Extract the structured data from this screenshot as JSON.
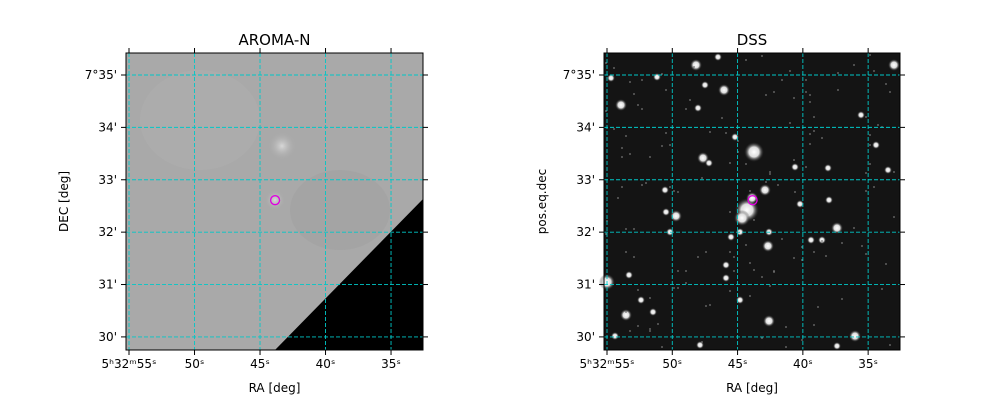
{
  "chart_data": [
    {
      "type": "image",
      "title": "AROMA-N",
      "xlabel": "RA [deg]",
      "ylabel": "DEC [deg]",
      "xlim": [
        55.23,
        32.56
      ],
      "ylim": [
        29.75,
        35.42
      ],
      "xticks": [
        {
          "value": 55,
          "label": "5ʰ32ᵐ55ˢ"
        },
        {
          "value": 50,
          "label": "50ˢ"
        },
        {
          "value": 45,
          "label": "45ˢ"
        },
        {
          "value": 40,
          "label": "40ˢ"
        },
        {
          "value": 35,
          "label": "35ˢ"
        }
      ],
      "yticks": [
        {
          "value": 35,
          "label": "7°35'"
        },
        {
          "value": 34,
          "label": "34'"
        },
        {
          "value": 33,
          "label": "33'"
        },
        {
          "value": 32,
          "label": "32'"
        },
        {
          "value": 31,
          "label": "31'"
        },
        {
          "value": 30,
          "label": "30'"
        }
      ],
      "grid": true,
      "x": [
        43.85
      ],
      "values": [
        32.61
      ],
      "color": "#e000e0"
    },
    {
      "type": "image",
      "title": "DSS",
      "xlabel": "RA [deg]",
      "ylabel": "pos.eq.dec",
      "xlim": [
        55.23,
        32.56
      ],
      "ylim": [
        29.75,
        35.42
      ],
      "xticks": [
        {
          "value": 55,
          "label": "5ʰ32ᵐ55ˢ"
        },
        {
          "value": 50,
          "label": "50ˢ"
        },
        {
          "value": 45,
          "label": "45ˢ"
        },
        {
          "value": 40,
          "label": "40ˢ"
        },
        {
          "value": 35,
          "label": "35ˢ"
        }
      ],
      "yticks": [
        {
          "value": 35,
          "label": "7°35'"
        },
        {
          "value": 34,
          "label": "34'"
        },
        {
          "value": 33,
          "label": "33'"
        },
        {
          "value": 32,
          "label": "32'"
        },
        {
          "value": 31,
          "label": "31'"
        },
        {
          "value": 30,
          "label": "30'"
        }
      ],
      "grid": true,
      "x": [
        43.85
      ],
      "values": [
        32.61
      ],
      "color": "#e000e0"
    }
  ]
}
